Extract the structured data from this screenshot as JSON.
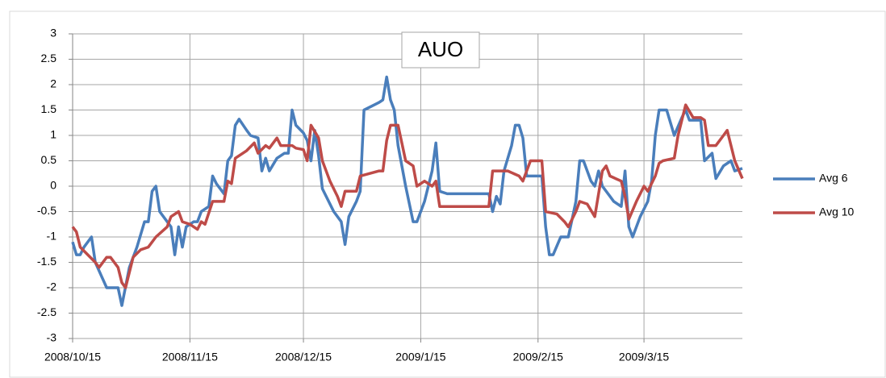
{
  "chart_data": {
    "type": "line",
    "title": "AUO",
    "legend": "right",
    "grid": true,
    "ylim": [
      -3,
      3
    ],
    "yticks": [
      -3,
      -2.5,
      -2,
      -1.5,
      -1,
      -0.5,
      0,
      0.5,
      1,
      1.5,
      2,
      2.5,
      3
    ],
    "xlim": [
      "2008/10/15",
      "2009/4/10"
    ],
    "xticks": [
      "2008/10/15",
      "2008/11/15",
      "2008/12/15",
      "2009/1/15",
      "2009/2/15",
      "2009/3/15"
    ],
    "series": [
      {
        "name": "Avg 6",
        "color": "#4a7ebb",
        "x": [
          "2008/10/15",
          "2008/10/16",
          "2008/10/17",
          "2008/10/18",
          "2008/10/20",
          "2008/10/21",
          "2008/10/24",
          "2008/10/27",
          "2008/10/28",
          "2008/10/30",
          "2008/11/1",
          "2008/11/3",
          "2008/11/4",
          "2008/11/5",
          "2008/11/6",
          "2008/11/7",
          "2008/11/10",
          "2008/11/11",
          "2008/11/12",
          "2008/11/13",
          "2008/11/14",
          "2008/11/16",
          "2008/11/17",
          "2008/11/18",
          "2008/11/20",
          "2008/11/21",
          "2008/11/22",
          "2008/11/24",
          "2008/11/25",
          "2008/11/26",
          "2008/11/27",
          "2008/11/28",
          "2008/11/30",
          "2008/12/1",
          "2008/12/3",
          "2008/12/4",
          "2008/12/5",
          "2008/12/6",
          "2008/12/8",
          "2008/12/10",
          "2008/12/11",
          "2008/12/12",
          "2008/12/13",
          "2008/12/15",
          "2008/12/16",
          "2008/12/17",
          "2008/12/18",
          "2008/12/19",
          "2008/12/20",
          "2008/12/23",
          "2008/12/25",
          "2008/12/26",
          "2008/12/27",
          "2008/12/29",
          "2008/12/30",
          "2008/12/31",
          "2009/1/4",
          "2009/1/5",
          "2009/1/6",
          "2009/1/7",
          "2009/1/8",
          "2009/1/9",
          "2009/1/11",
          "2009/1/13",
          "2009/1/14",
          "2009/1/16",
          "2009/1/18",
          "2009/1/19",
          "2009/1/20",
          "2009/1/22",
          "2009/2/2",
          "2009/2/3",
          "2009/2/4",
          "2009/2/5",
          "2009/2/6",
          "2009/2/8",
          "2009/2/9",
          "2009/2/10",
          "2009/2/11",
          "2009/2/12",
          "2009/2/16",
          "2009/2/17",
          "2009/2/18",
          "2009/2/19",
          "2009/2/21",
          "2009/2/23",
          "2009/2/25",
          "2009/2/26",
          "2009/2/27",
          "2009/3/1",
          "2009/3/2",
          "2009/3/3",
          "2009/3/4",
          "2009/3/6",
          "2009/3/7",
          "2009/3/9",
          "2009/3/10",
          "2009/3/11",
          "2009/3/12",
          "2009/3/14",
          "2009/3/16",
          "2009/3/17",
          "2009/3/18",
          "2009/3/19",
          "2009/3/21",
          "2009/3/23",
          "2009/3/25",
          "2009/3/26",
          "2009/3/27",
          "2009/3/30",
          "2009/3/31",
          "2009/4/2",
          "2009/4/3",
          "2009/4/5",
          "2009/4/7",
          "2009/4/8",
          "2009/4/10"
        ],
        "values": [
          -1.1,
          -1.35,
          -1.35,
          -1.2,
          -1.0,
          -1.5,
          -2.0,
          -2.0,
          -2.35,
          -1.6,
          -1.2,
          -0.7,
          -0.7,
          -0.1,
          0,
          -0.5,
          -0.8,
          -1.35,
          -0.8,
          -1.2,
          -0.8,
          -0.7,
          -0.7,
          -0.5,
          -0.4,
          0.2,
          0.05,
          -0.15,
          0.5,
          0.6,
          1.2,
          1.32,
          1.1,
          1.0,
          0.95,
          0.3,
          0.55,
          0.3,
          0.55,
          0.65,
          0.65,
          1.5,
          1.2,
          1.05,
          0.9,
          0.5,
          1.1,
          0.6,
          -0.05,
          -0.5,
          -0.7,
          -1.15,
          -0.6,
          -0.3,
          -0.1,
          1.5,
          1.65,
          1.7,
          2.15,
          1.7,
          1.5,
          0.8,
          0,
          -0.7,
          -0.7,
          -0.3,
          0.3,
          0.85,
          -0.1,
          -0.15,
          -0.15,
          -0.5,
          -0.2,
          -0.35,
          0.3,
          0.8,
          1.2,
          1.2,
          0.95,
          0.2,
          0.2,
          -0.8,
          -1.35,
          -1.35,
          -1.0,
          -1.0,
          -0.3,
          0.5,
          0.5,
          0.1,
          0,
          0.3,
          0,
          -0.2,
          -0.3,
          -0.4,
          0.3,
          -0.8,
          -1.0,
          -0.6,
          -0.3,
          0.1,
          1.0,
          1.5,
          1.5,
          1.0,
          1.35,
          1.5,
          1.3,
          1.3,
          0.5,
          0.65,
          0.15,
          0.4,
          0.5,
          0.3,
          0.35
        ]
      },
      {
        "name": "Avg 10",
        "color": "#be4b48",
        "x": [
          "2008/10/15",
          "2008/10/16",
          "2008/10/17",
          "2008/10/19",
          "2008/10/21",
          "2008/10/22",
          "2008/10/24",
          "2008/10/25",
          "2008/10/27",
          "2008/10/28",
          "2008/10/29",
          "2008/10/31",
          "2008/11/2",
          "2008/11/4",
          "2008/11/6",
          "2008/11/9",
          "2008/11/10",
          "2008/11/12",
          "2008/11/13",
          "2008/11/15",
          "2008/11/17",
          "2008/11/18",
          "2008/11/19",
          "2008/11/21",
          "2008/11/24",
          "2008/11/25",
          "2008/11/26",
          "2008/11/27",
          "2008/11/30",
          "2008/12/2",
          "2008/12/3",
          "2008/12/5",
          "2008/12/6",
          "2008/12/8",
          "2008/12/9",
          "2008/12/12",
          "2008/12/13",
          "2008/12/15",
          "2008/12/16",
          "2008/12/17",
          "2008/12/19",
          "2008/12/20",
          "2008/12/22",
          "2008/12/24",
          "2008/12/25",
          "2008/12/26",
          "2008/12/29",
          "2008/12/30",
          "2009/1/4",
          "2009/1/5",
          "2009/1/6",
          "2009/1/7",
          "2009/1/9",
          "2009/1/11",
          "2009/1/13",
          "2009/1/14",
          "2009/1/16",
          "2009/1/18",
          "2009/1/19",
          "2009/1/20",
          "2009/2/2",
          "2009/2/3",
          "2009/2/7",
          "2009/2/10",
          "2009/2/11",
          "2009/2/13",
          "2009/2/16",
          "2009/2/17",
          "2009/2/20",
          "2009/2/22",
          "2009/2/23",
          "2009/2/25",
          "2009/2/26",
          "2009/2/28",
          "2009/3/2",
          "2009/3/4",
          "2009/3/5",
          "2009/3/6",
          "2009/3/9",
          "2009/3/10",
          "2009/3/11",
          "2009/3/13",
          "2009/3/15",
          "2009/3/16",
          "2009/3/18",
          "2009/3/19",
          "2009/3/20",
          "2009/3/23",
          "2009/3/24",
          "2009/3/26",
          "2009/3/28",
          "2009/3/30",
          "2009/3/31",
          "2009/4/1",
          "2009/4/3",
          "2009/4/5",
          "2009/4/6",
          "2009/4/8",
          "2009/4/10"
        ],
        "values": [
          -0.8,
          -0.9,
          -1.2,
          -1.35,
          -1.5,
          -1.6,
          -1.4,
          -1.4,
          -1.6,
          -1.9,
          -2.0,
          -1.4,
          -1.25,
          -1.2,
          -1.0,
          -0.8,
          -0.6,
          -0.5,
          -0.7,
          -0.75,
          -0.85,
          -0.7,
          -0.75,
          -0.3,
          -0.3,
          0.1,
          0.05,
          0.55,
          0.7,
          0.85,
          0.65,
          0.8,
          0.75,
          0.95,
          0.8,
          0.8,
          0.75,
          0.72,
          0.5,
          1.2,
          0.95,
          0.5,
          0.1,
          -0.2,
          -0.4,
          -0.1,
          -0.1,
          0.2,
          0.3,
          0.3,
          0.9,
          1.2,
          1.2,
          0.5,
          0.4,
          0,
          0.1,
          0,
          0.1,
          -0.4,
          -0.4,
          0.3,
          0.3,
          0.2,
          0.1,
          0.5,
          0.5,
          -0.5,
          -0.55,
          -0.7,
          -0.8,
          -0.5,
          -0.3,
          -0.35,
          -0.6,
          0.3,
          0.4,
          0.2,
          0.1,
          -0.2,
          -0.65,
          -0.3,
          0,
          -0.1,
          0.2,
          0.45,
          0.5,
          0.55,
          1.0,
          1.6,
          1.35,
          1.35,
          1.3,
          0.8,
          0.8,
          1.0,
          1.1,
          0.5,
          0.15
        ]
      }
    ]
  }
}
